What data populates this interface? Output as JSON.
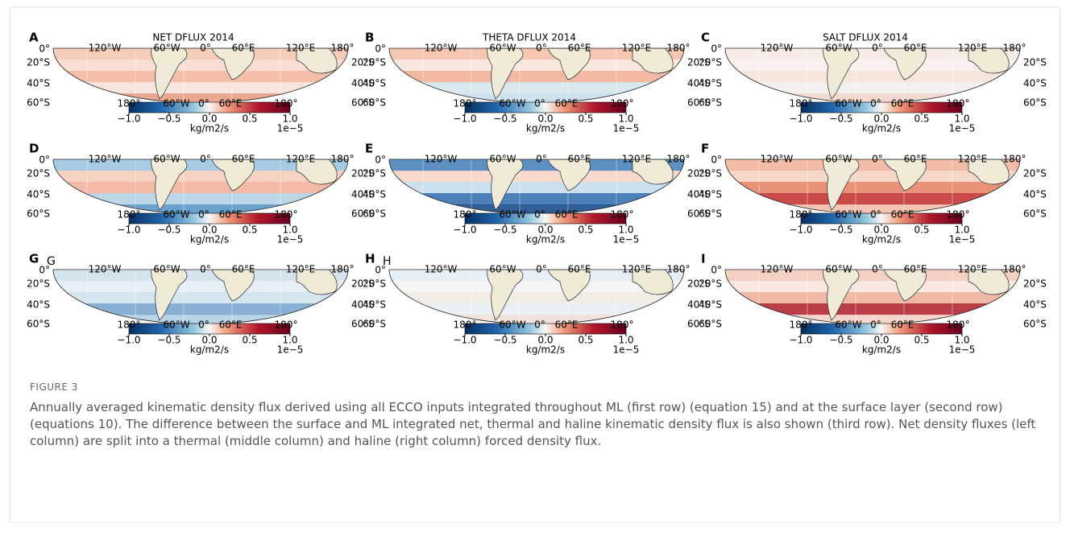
{
  "panels": [
    {
      "letter": "A",
      "title": "NET DFLUX 2014"
    },
    {
      "letter": "B",
      "title": "THETA DFLUX 2014"
    },
    {
      "letter": "C",
      "title": "SALT DFLUX 2014"
    },
    {
      "letter": "D"
    },
    {
      "letter": "E"
    },
    {
      "letter": "F"
    },
    {
      "letter": "G",
      "inner_label": "G"
    },
    {
      "letter": "H",
      "inner_label": "H"
    },
    {
      "letter": "I"
    }
  ],
  "map_labels": {
    "top_longitudes": [
      "120°W",
      "60°W",
      "0°",
      "60°E",
      "120°E",
      "180°"
    ],
    "left_latitudes": [
      "0°",
      "20°S",
      "40°S",
      "60°S"
    ],
    "right_latitudes": [
      "20°S",
      "40°S",
      "60°S"
    ],
    "bottom_longitudes": [
      "180°",
      "60°W",
      "0°",
      "60°E",
      "180°"
    ]
  },
  "colorbar": {
    "ticks": [
      "−1.0",
      "−0.5",
      "0.0",
      "0.5",
      "1.0"
    ],
    "unit": "kg/m2/s",
    "offset": "1e−5"
  },
  "caption": {
    "label": "FIGURE 3",
    "text": "Annually averaged kinematic density flux derived using all ECCO inputs integrated throughout ML (first row) (equation 15) and at the surface layer (second row) (equations 10). The difference between the surface and ML integrated net, thermal and haline kinematic density flux is also shown (third row). Net density fluxes (left column) are split into a thermal (middle column) and haline (right column) forced density flux."
  }
}
